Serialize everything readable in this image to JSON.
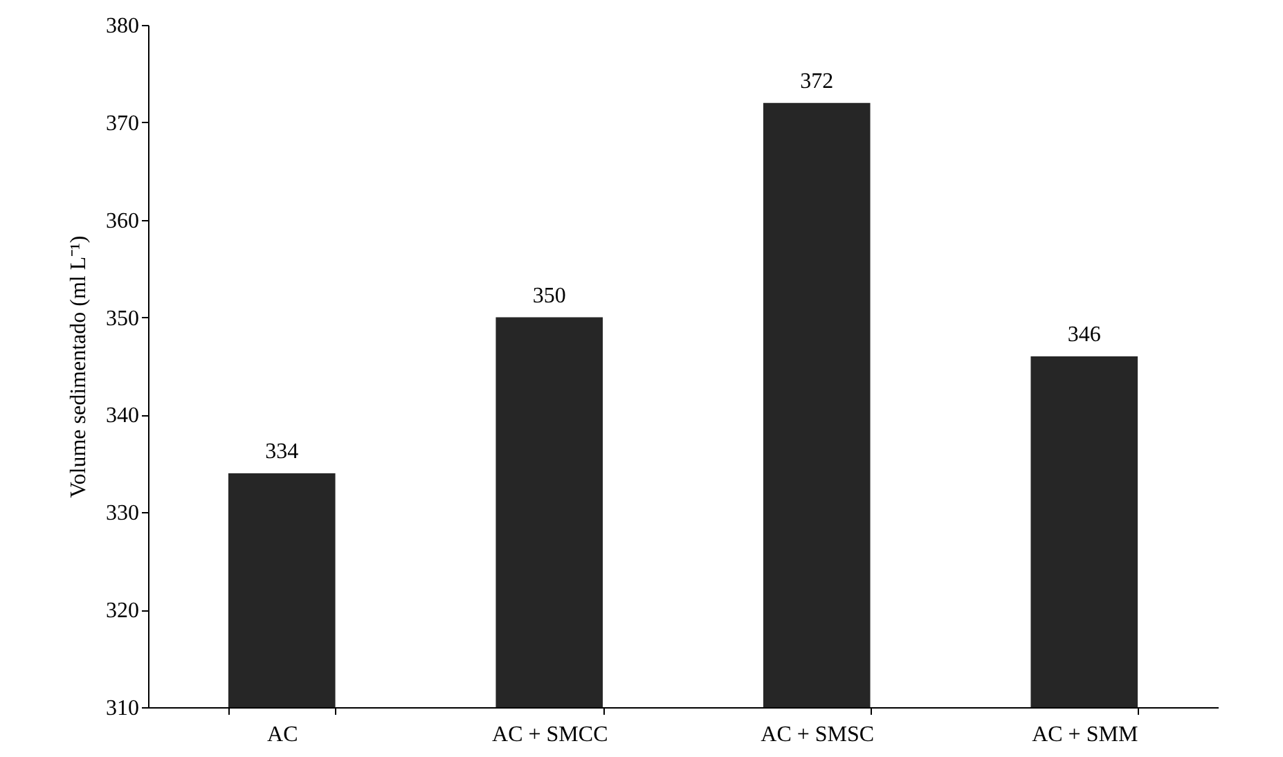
{
  "chart_data": {
    "type": "bar",
    "ylabel": "Volume sedimentado (ml L⁻¹)",
    "categories": [
      "AC",
      "AC + SMCC",
      "AC + SMSC",
      "AC + SMM"
    ],
    "values": [
      334,
      350,
      372,
      346
    ],
    "color": "#262626",
    "ylim": [
      310,
      380
    ],
    "yticks": [
      310,
      320,
      330,
      340,
      350,
      360,
      370,
      380
    ],
    "data_labels": true
  }
}
